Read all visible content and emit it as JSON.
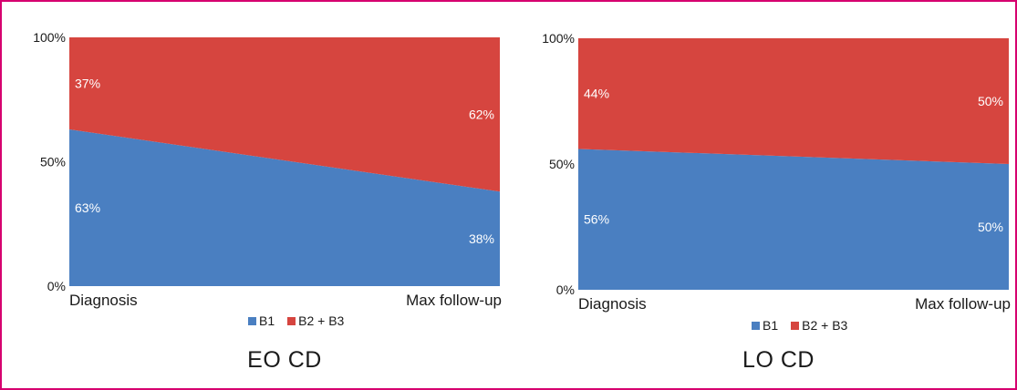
{
  "chart_data": [
    {
      "type": "area",
      "stacked": true,
      "normalized": true,
      "title": "EO CD",
      "categories": [
        "Diagnosis",
        "Max follow-up"
      ],
      "series": [
        {
          "name": "B1",
          "color": "#4a7fc1",
          "values": [
            63,
            38
          ],
          "labels": [
            "63%",
            "38%"
          ]
        },
        {
          "name": "B2 + B3",
          "color": "#d6453f",
          "values": [
            37,
            62
          ],
          "labels": [
            "37%",
            "62%"
          ]
        }
      ],
      "ylim": [
        0,
        100
      ],
      "yticks": [
        "0%",
        "50%",
        "100%"
      ],
      "grid": false,
      "legend_position": "bottom"
    },
    {
      "type": "area",
      "stacked": true,
      "normalized": true,
      "title": "LO CD",
      "categories": [
        "Diagnosis",
        "Max follow-up"
      ],
      "series": [
        {
          "name": "B1",
          "color": "#4a7fc1",
          "values": [
            56,
            50
          ],
          "labels": [
            "56%",
            "50%"
          ]
        },
        {
          "name": "B2 + B3",
          "color": "#d6453f",
          "values": [
            44,
            50
          ],
          "labels": [
            "44%",
            "50%"
          ]
        }
      ],
      "ylim": [
        0,
        100
      ],
      "yticks": [
        "0%",
        "50%",
        "100%"
      ],
      "grid": false,
      "legend_position": "bottom"
    }
  ]
}
